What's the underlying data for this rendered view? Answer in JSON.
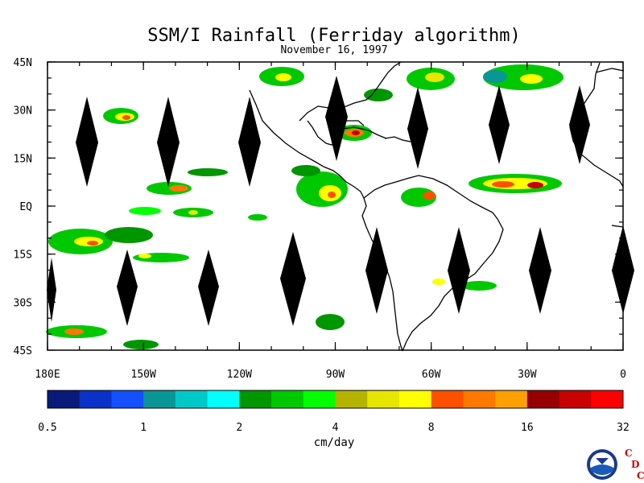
{
  "title": "SSM/I Rainfall (Ferriday algorithm)",
  "subtitle": "November 16, 1997",
  "lat_labels": [
    "45N",
    "30N",
    "15N",
    "EQ",
    "15S",
    "30S",
    "45S"
  ],
  "lon_labels": [
    "180E",
    "150W",
    "120W",
    "90W",
    "60W",
    "30W",
    "0"
  ],
  "colorbar": {
    "colors": [
      "#0a1a7a",
      "#0a32c8",
      "#1450ff",
      "#0a9696",
      "#00c8c8",
      "#00ffff",
      "#009600",
      "#00c800",
      "#00ff00",
      "#b4b400",
      "#e6e600",
      "#ffff00",
      "#ff5000",
      "#ff7800",
      "#ffa000",
      "#960000",
      "#c80000",
      "#ff0000"
    ],
    "labels": [
      "0.5",
      "1",
      "2",
      "4",
      "8",
      "16",
      "32"
    ],
    "units": "cm/day"
  },
  "logo": {
    "emblem": "NOAA",
    "letters": [
      "C",
      "D",
      "C"
    ],
    "letter_color": "#cc0000"
  }
}
